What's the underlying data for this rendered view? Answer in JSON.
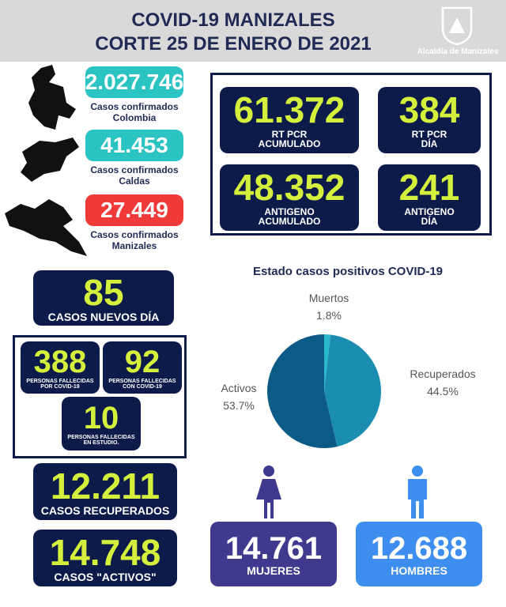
{
  "header": {
    "title": "COVID-19 MANIZALES",
    "subtitle": "CORTE  25 DE ENERO DE 2021",
    "logo_text": "Alcaldía de Manizales"
  },
  "confirmed": [
    {
      "value": "2.027.746",
      "label": [
        "Casos confirmados",
        "Colombia"
      ]
    },
    {
      "value": "41.453",
      "label": [
        "Casos confirmados",
        "Caldas"
      ]
    },
    {
      "value": "27.449",
      "label": [
        "Casos confirmados",
        "Manizales"
      ]
    }
  ],
  "tests": [
    {
      "value": "61.372",
      "label": [
        "RT PCR",
        "ACUMULADO"
      ]
    },
    {
      "value": "384",
      "label": [
        "RT PCR",
        "DÍA"
      ]
    },
    {
      "value": "48.352",
      "label": [
        "ANTIGENO",
        "ACUMULADO"
      ]
    },
    {
      "value": "241",
      "label": [
        "ANTIGENO",
        "DÍA"
      ]
    }
  ],
  "new_cases": {
    "value": "85",
    "label": "CASOS NUEVOS DÍA"
  },
  "deaths": [
    {
      "value": "388",
      "label": [
        "PERSONAS FALLECIDAS",
        "POR COVID-19"
      ]
    },
    {
      "value": "92",
      "label": [
        "PERSONAS FALLECIDAS",
        "CON COVID-19"
      ]
    },
    {
      "value": "10",
      "label": [
        "PERSONAS FALLECIDAS",
        "EN ESTUDIO."
      ]
    }
  ],
  "recovered": {
    "value": "12.211",
    "label": "CASOS RECUPERADOS"
  },
  "active": {
    "value": "14.748",
    "label": "CASOS \"ACTIVOS\""
  },
  "gender": [
    {
      "value": "14.761",
      "label": "MUJERES"
    },
    {
      "value": "12.688",
      "label": "HOMBRES"
    }
  ],
  "chart_data": {
    "type": "pie",
    "title": "Estado casos positivos COVID-19",
    "categories": [
      "Muertos",
      "Recuperados",
      "Activos"
    ],
    "values": [
      1.8,
      44.5,
      53.7
    ],
    "value_labels": [
      "1.8%",
      "44.5%",
      "53.7%"
    ],
    "colors": [
      "#2ab8cc",
      "#1a8db0",
      "#0b5b86"
    ]
  }
}
